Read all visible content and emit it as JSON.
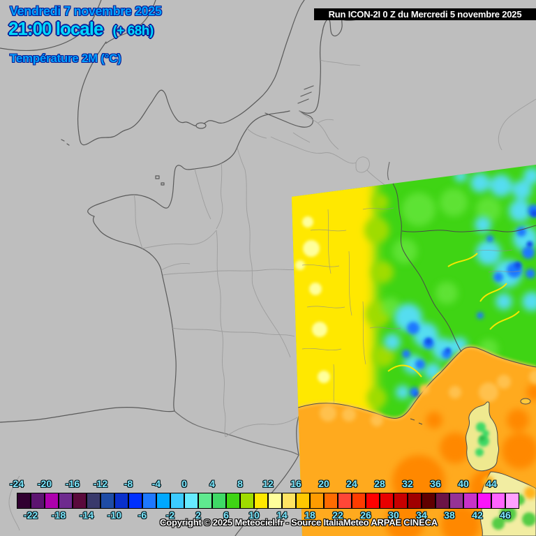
{
  "header": {
    "date_line": "Vendredi 7 novembre 2025",
    "time_line": "21:00 locale",
    "offset": "(+ 68h)",
    "variable": "Température 2M (°C)",
    "text_color": "#00A2FF",
    "time_color": "#00D9FF",
    "outline_color": "#0A1E96"
  },
  "run_bar": {
    "label": "Run ICON-2I 0 Z du Mercredi 5 novembre 2025",
    "bg": "#000000",
    "fg": "#FFFFFF"
  },
  "legend": {
    "unit": "°C",
    "upper_labels": [
      "-24",
      "-20",
      "-16",
      "-12",
      "-8",
      "-4",
      "0",
      "4",
      "8",
      "12",
      "16",
      "20",
      "24",
      "28",
      "32",
      "36",
      "40",
      "44"
    ],
    "lower_labels": [
      "-22",
      "-18",
      "-14",
      "-10",
      "-6",
      "-2",
      "2",
      "6",
      "10",
      "14",
      "18",
      "22",
      "26",
      "30",
      "34",
      "38",
      "42",
      "46"
    ],
    "cell_colors": [
      "#300030",
      "#5C1470",
      "#AD00AD",
      "#6E2A8E",
      "#5A0A3C",
      "#39396B",
      "#1E4CA5",
      "#0A30CC",
      "#0030FF",
      "#1E78FF",
      "#00A8FF",
      "#3CCBFF",
      "#66EBFF",
      "#5FE98F",
      "#3FD966",
      "#3FD414",
      "#9FDC00",
      "#FFE800",
      "#FFFF9B",
      "#FFE463",
      "#FFC800",
      "#FF9B00",
      "#FF6B00",
      "#FF4637",
      "#FF3C00",
      "#FF0000",
      "#E80000",
      "#C80000",
      "#A00000",
      "#600000",
      "#6B1446",
      "#963296",
      "#C832C8",
      "#FA14FA",
      "#FF64FF",
      "#FFA0FF"
    ],
    "label_color": "#7FE9FF",
    "cell_border": "#000000"
  },
  "footer": {
    "copyright": "Copyright © 2025 Meteociel.fr - Source ItaliaMeteo ARPAE CINECA"
  },
  "map": {
    "background": "#BEBEBE",
    "coastline_color": "#5A5A5A",
    "department_border_color": "#9C9C9C",
    "country_border_color": "#4A4A4A",
    "domain_colors": {
      "mild_yellow": "#FFE800",
      "pale_yellow_spots": "#FFFF9B",
      "base_green": "#3FD414",
      "cold_cyan": "#55DDF0",
      "cold_blue": "#1E78FF",
      "sea_orange": "#FFAA1E",
      "warm_sea_orange": "#FF8800",
      "island_fill": "#EFE98F"
    }
  }
}
